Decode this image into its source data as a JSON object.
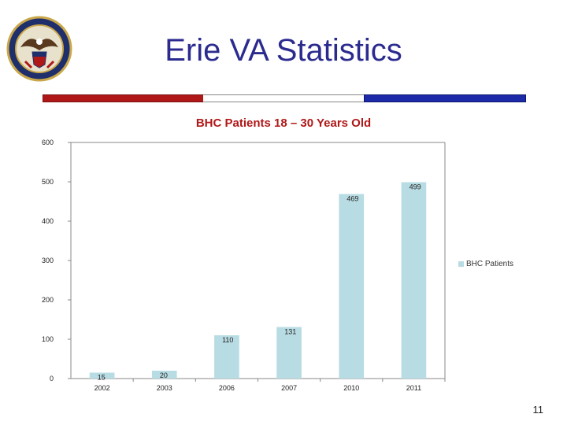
{
  "header": {
    "title": "Erie VA Statistics"
  },
  "colors": {
    "title": "#2b2b8f",
    "chart_title": "#b01818",
    "bar": "#b8dce3",
    "rule_red": "#b01818",
    "rule_blue": "#1c2aa8"
  },
  "chart_data": {
    "type": "bar",
    "title": "BHC Patients 18 – 30 Years Old",
    "categories": [
      "2002",
      "2003",
      "2006",
      "2007",
      "2010",
      "2011"
    ],
    "series": [
      {
        "name": "BHC Patients",
        "values": [
          15,
          20,
          110,
          131,
          469,
          499
        ]
      }
    ],
    "xlabel": "",
    "ylabel": "",
    "ylim": [
      0,
      600
    ],
    "yticks": [
      0,
      100,
      200,
      300,
      400,
      500,
      600
    ],
    "grid": false,
    "legend": "right"
  },
  "footer": {
    "page_number": "11"
  }
}
